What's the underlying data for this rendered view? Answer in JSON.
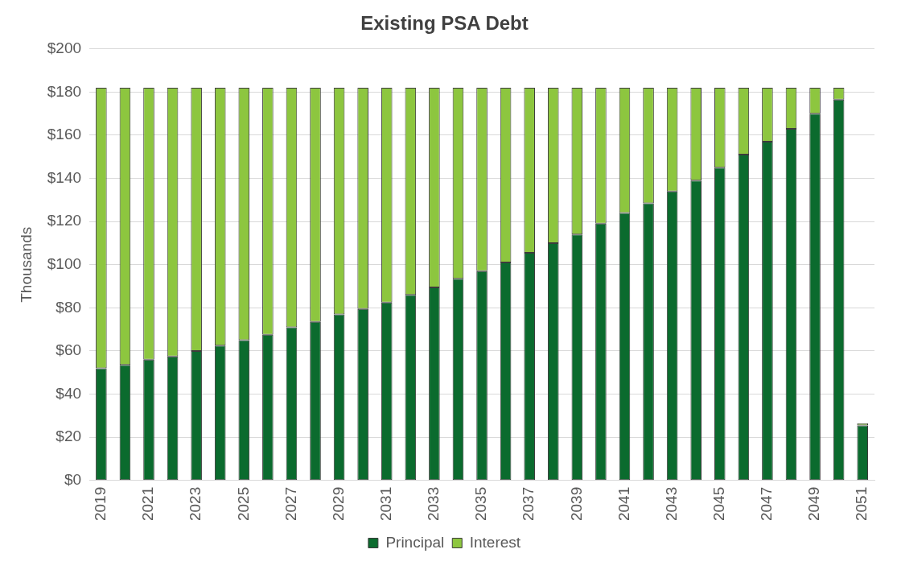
{
  "chart_data": {
    "type": "bar",
    "title": "Existing PSA Debt",
    "ylabel": "Thousands",
    "categories": [
      "2019",
      null,
      "2021",
      null,
      "2023",
      null,
      "2025",
      null,
      "2027",
      null,
      "2029",
      null,
      "2031",
      null,
      "2033",
      null,
      "2035",
      null,
      "2037",
      null,
      "2039",
      null,
      "2041",
      null,
      "2043",
      null,
      "2045",
      null,
      "2047",
      null,
      "2049",
      null,
      "2051"
    ],
    "series": [
      {
        "name": "Principal",
        "color": "#0b6b2e",
        "values": [
          52,
          53.5,
          56,
          57.5,
          60,
          62.5,
          65,
          67.5,
          71,
          73.5,
          77,
          79.5,
          82.5,
          86,
          89.5,
          93.5,
          97,
          101,
          105.5,
          110,
          114,
          119,
          124,
          128.5,
          134,
          139,
          145,
          151,
          157,
          163,
          170,
          176.5,
          25.5
        ]
      },
      {
        "name": "Interest",
        "color": "#8dc63f",
        "values": [
          130,
          128.5,
          126,
          124.5,
          122,
          119.5,
          117,
          114.5,
          111,
          108.5,
          105,
          102.5,
          99.5,
          96,
          92.5,
          88.5,
          85,
          81,
          76.5,
          72,
          68,
          63,
          58,
          53.5,
          48,
          43,
          37,
          31,
          25,
          19,
          12,
          5.5,
          1
        ]
      }
    ],
    "stacked": true,
    "ylim": [
      0,
      200
    ],
    "yticks": [
      {
        "value": 0,
        "label": "$0"
      },
      {
        "value": 20,
        "label": "$20"
      },
      {
        "value": 40,
        "label": "$40"
      },
      {
        "value": 60,
        "label": "$60"
      },
      {
        "value": 80,
        "label": "$80"
      },
      {
        "value": 100,
        "label": "$100"
      },
      {
        "value": 120,
        "label": "$120"
      },
      {
        "value": 140,
        "label": "$140"
      },
      {
        "value": 160,
        "label": "$160"
      },
      {
        "value": 180,
        "label": "$180"
      },
      {
        "value": 200,
        "label": "$200"
      }
    ],
    "grid": "y",
    "legend": "bottom"
  }
}
